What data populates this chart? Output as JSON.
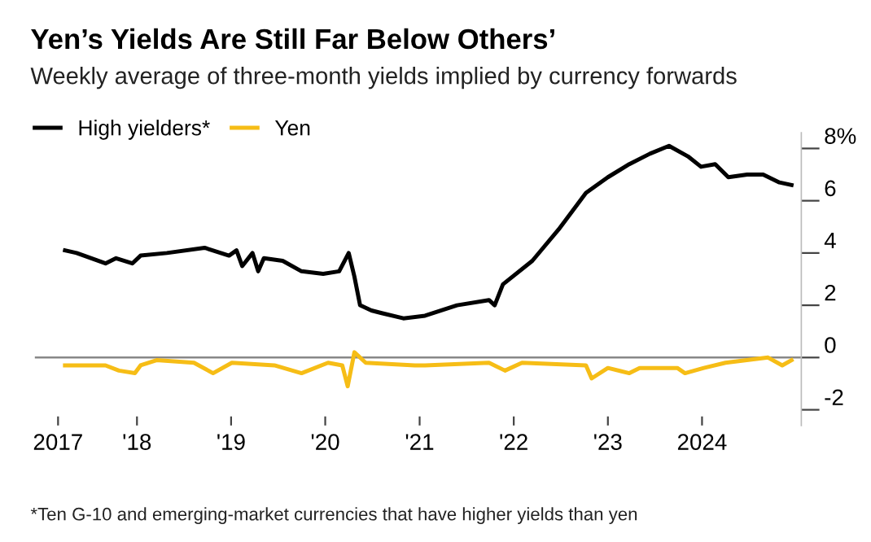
{
  "chart_data": {
    "type": "line",
    "title": "Yen’s Yields Are Still Far Below Others’",
    "subtitle": "Weekly average of three-month yields implied by currency forwards",
    "annotations": [
      "*Ten G-10 and emerging-market currencies that have higher yields than yen"
    ],
    "series": [
      {
        "name": "High yielders*",
        "color": "#000000",
        "x": [
          "2017-03-28",
          "2017-05-12",
          "2017-09-01",
          "2017-10-12",
          "2017-12-14",
          "2018-01-15",
          "2018-04-27",
          "2018-09-20",
          "2018-12-24",
          "2019-01-22",
          "2019-02-13",
          "2019-03-25",
          "2019-04-16",
          "2019-05-08",
          "2019-07-20",
          "2019-10-01",
          "2019-12-24",
          "2020-02-24",
          "2020-04-01",
          "2020-04-23",
          "2020-05-15",
          "2020-06-28",
          "2020-08-07",
          "2020-10-30",
          "2021-01-22",
          "2021-05-26",
          "2021-09-27",
          "2021-10-19",
          "2021-11-20",
          "2022-03-14",
          "2022-06-24",
          "2022-10-08",
          "2023-01-01",
          "2023-03-25",
          "2023-06-13",
          "2023-08-26",
          "2023-11-07",
          "2023-12-28",
          "2024-02-21",
          "2024-04-12",
          "2024-06-24",
          "2024-08-25",
          "2024-10-27",
          "2024-12-13"
        ],
        "values": [
          4.1,
          4.0,
          3.6,
          3.8,
          3.6,
          3.9,
          4.0,
          4.2,
          3.9,
          4.1,
          3.5,
          4.0,
          3.3,
          3.8,
          3.7,
          3.3,
          3.2,
          3.3,
          4.0,
          3.1,
          2.0,
          1.8,
          1.7,
          1.5,
          1.6,
          2.0,
          2.2,
          2.0,
          2.8,
          3.7,
          4.9,
          6.3,
          6.9,
          7.4,
          7.8,
          8.1,
          7.7,
          7.3,
          7.4,
          6.9,
          7.0,
          7.0,
          6.7,
          6.6
        ]
      },
      {
        "name": "Yen",
        "color": "#f6bd16",
        "x": [
          "2017-03-28",
          "2017-09-01",
          "2017-10-23",
          "2017-12-24",
          "2018-01-15",
          "2018-03-18",
          "2018-08-10",
          "2018-10-23",
          "2019-01-04",
          "2019-06-18",
          "2019-10-01",
          "2020-01-12",
          "2020-03-07",
          "2020-03-28",
          "2020-04-23",
          "2020-06-06",
          "2020-12-13",
          "2021-01-22",
          "2021-09-27",
          "2021-11-28",
          "2022-02-02",
          "2022-10-08",
          "2022-10-30",
          "2023-01-01",
          "2023-03-25",
          "2023-05-04",
          "2023-09-27",
          "2023-10-27",
          "2024-01-08",
          "2024-04-01",
          "2024-09-13",
          "2024-11-07",
          "2024-12-13"
        ],
        "values": [
          -0.3,
          -0.3,
          -0.5,
          -0.6,
          -0.3,
          -0.1,
          -0.2,
          -0.6,
          -0.2,
          -0.3,
          -0.6,
          -0.2,
          -0.3,
          -1.1,
          0.2,
          -0.2,
          -0.3,
          -0.3,
          -0.2,
          -0.5,
          -0.2,
          -0.3,
          -0.8,
          -0.4,
          -0.6,
          -0.4,
          -0.4,
          -0.6,
          -0.4,
          -0.2,
          0.0,
          -0.3,
          -0.1
        ]
      }
    ],
    "xlim": [
      "2016-12-01",
      "2025-01-20"
    ],
    "xticks": [
      {
        "value": "2017-03-01",
        "label": "2017"
      },
      {
        "value": "2018-01-01",
        "label": "'18"
      },
      {
        "value": "2019-01-01",
        "label": "'19"
      },
      {
        "value": "2020-01-01",
        "label": "'20"
      },
      {
        "value": "2021-01-01",
        "label": "'21"
      },
      {
        "value": "2022-01-01",
        "label": "'22"
      },
      {
        "value": "2023-01-01",
        "label": "'23"
      },
      {
        "value": "2024-01-01",
        "label": "2024"
      }
    ],
    "ylim": [
      -2.6,
      8.6
    ],
    "yticks": [
      -2,
      0,
      2,
      4,
      {
        "value": 6,
        "label": "6"
      },
      {
        "value": 8,
        "label": "8%"
      }
    ],
    "ref_lines": [
      {
        "axis": "y",
        "value": 0,
        "color": "#888888"
      }
    ],
    "grid": false,
    "legend": "top left",
    "line_style": "solid",
    "marker": "none"
  }
}
